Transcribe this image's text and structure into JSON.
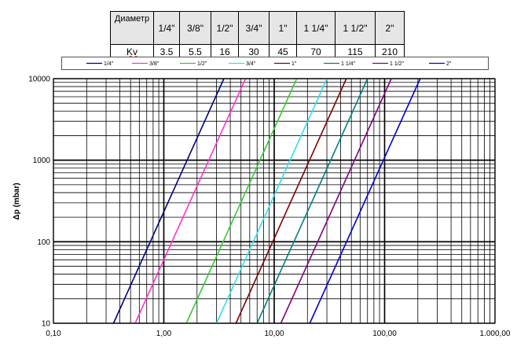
{
  "table": {
    "header_label": "Диаметр",
    "kv_label": "Kv",
    "columns": [
      "1/4\"",
      "3/8\"",
      "1/2\"",
      "3/4\"",
      "1\"",
      "1 1/4\"",
      "1 1/2\"",
      "2\""
    ],
    "kv_values": [
      "3.5",
      "5.5",
      "16",
      "30",
      "45",
      "70",
      "115",
      "210"
    ]
  },
  "chart_data": {
    "type": "line",
    "x_scale": "log",
    "y_scale": "log",
    "xlim": [
      0.1,
      1000
    ],
    "ylim": [
      10,
      10000
    ],
    "grid": true,
    "ylabel": "Δp  (mbar)",
    "xlabel": "",
    "x_tick_labels": [
      "0,10",
      "1,00",
      "10,00",
      "100,00",
      "1.000,00"
    ],
    "y_tick_labels": [
      "10",
      "100",
      "1000",
      "10000"
    ],
    "legend_position": "top",
    "series": [
      {
        "name": "1/4\"",
        "color": "#000080",
        "x": [
          0.35,
          3.5
        ],
        "y": [
          10,
          10000
        ]
      },
      {
        "name": "3/8\"",
        "color": "#ff33cc",
        "x": [
          0.55,
          5.5
        ],
        "y": [
          10,
          10000
        ]
      },
      {
        "name": "1/2\"",
        "color": "#33cc33",
        "x": [
          1.6,
          16.0
        ],
        "y": [
          10,
          10000
        ]
      },
      {
        "name": "3/4\"",
        "color": "#33ddee",
        "x": [
          3.0,
          30.0
        ],
        "y": [
          10,
          10000
        ]
      },
      {
        "name": "1\"",
        "color": "#800000",
        "x": [
          4.5,
          45.0
        ],
        "y": [
          10,
          10000
        ]
      },
      {
        "name": "1 1/4\"",
        "color": "#008080",
        "x": [
          7.0,
          70.0
        ],
        "y": [
          10,
          10000
        ]
      },
      {
        "name": "1 1/2\"",
        "color": "#800080",
        "x": [
          11.5,
          115.0
        ],
        "y": [
          10,
          10000
        ]
      },
      {
        "name": "2\"",
        "color": "#0000cc",
        "x": [
          21.0,
          210.0
        ],
        "y": [
          10,
          10000
        ]
      }
    ]
  }
}
